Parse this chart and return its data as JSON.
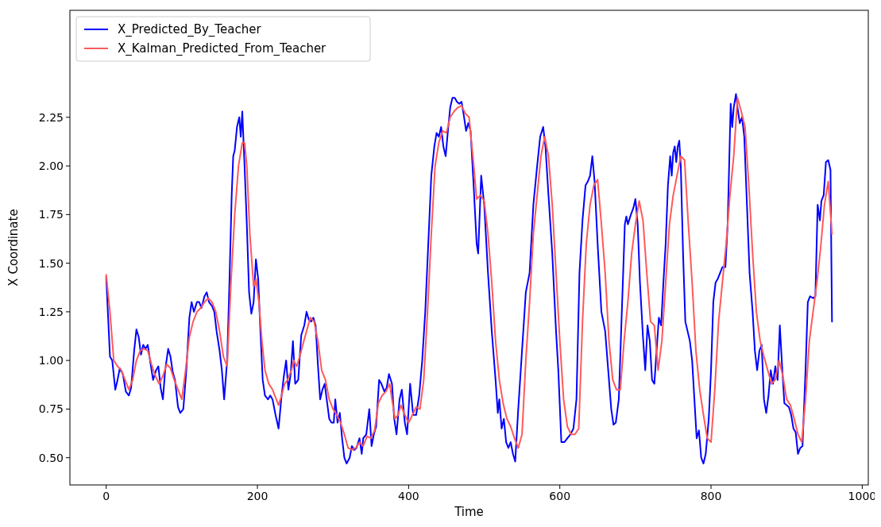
{
  "chart_data": {
    "type": "line",
    "xlabel": "Time",
    "ylabel": "X Coordinate",
    "xlim": [
      -48,
      1008
    ],
    "ylim": [
      0.36,
      2.8
    ],
    "xticks": [
      0,
      200,
      400,
      600,
      800,
      1000
    ],
    "yticks": [
      {
        "value": 0.5,
        "label": "0.50"
      },
      {
        "value": 0.75,
        "label": "0.75"
      },
      {
        "value": 1,
        "label": "1.00"
      },
      {
        "value": 1.25,
        "label": "1.25"
      },
      {
        "value": 1.5,
        "label": "1.50"
      },
      {
        "value": 1.75,
        "label": "1.75"
      },
      {
        "value": 2,
        "label": "2.00"
      },
      {
        "value": 2.25,
        "label": "2.25"
      }
    ],
    "grid": false,
    "legend": "top left",
    "marker": "none",
    "line_style": "solid",
    "series": [
      {
        "name": "X_Predicted_By_Teacher",
        "color": "#0000ff",
        "x": [
          0,
          5,
          8,
          12,
          15,
          18,
          22,
          26,
          30,
          33,
          37,
          40,
          43,
          46,
          49,
          52,
          55,
          58,
          62,
          66,
          69,
          72,
          75,
          78,
          82,
          85,
          88,
          91,
          95,
          98,
          102,
          106,
          110,
          113,
          116,
          120,
          123,
          126,
          130,
          133,
          136,
          140,
          143,
          146,
          150,
          153,
          156,
          160,
          163,
          166,
          168,
          170,
          173,
          176,
          178,
          180,
          183,
          186,
          189,
          192,
          195,
          198,
          201,
          204,
          207,
          210,
          214,
          217,
          220,
          224,
          228,
          232,
          235,
          238,
          241,
          244,
          247,
          250,
          254,
          258,
          262,
          265,
          268,
          271,
          274,
          277,
          280,
          283,
          286,
          289,
          292,
          295,
          298,
          301,
          303,
          306,
          309,
          312,
          315,
          318,
          322,
          325,
          328,
          331,
          335,
          338,
          340,
          344,
          348,
          351,
          354,
          357,
          361,
          364,
          368,
          371,
          374,
          378,
          381,
          384,
          388,
          391,
          395,
          398,
          402,
          406,
          410,
          414,
          418,
          422,
          426,
          430,
          434,
          437,
          440,
          443,
          446,
          449,
          452,
          455,
          458,
          461,
          464,
          467,
          470,
          473,
          476,
          479,
          482,
          486,
          490,
          492,
          496,
          500,
          505,
          510,
          515,
          518,
          520,
          523,
          526,
          529,
          532,
          535,
          538,
          541,
          545,
          550,
          555,
          560,
          565,
          570,
          574,
          578,
          581,
          585,
          590,
          595,
          598,
          602,
          606,
          610,
          614,
          618,
          622,
          626,
          630,
          634,
          637,
          640,
          643,
          646,
          650,
          655,
          660,
          664,
          668,
          671,
          674,
          678,
          682,
          686,
          688,
          690,
          694,
          697,
          700,
          703,
          706,
          710,
          713,
          716,
          719,
          722,
          725,
          728,
          731,
          734,
          737,
          740,
          743,
          746,
          748,
          750,
          752,
          754,
          756,
          758,
          760,
          763,
          766,
          769,
          772,
          775,
          778,
          781,
          784,
          787,
          790,
          793,
          797,
          800,
          803,
          806,
          809,
          812,
          815,
          819,
          822,
          826,
          828,
          830,
          833,
          835,
          838,
          841,
          844,
          847,
          851,
          855,
          858,
          861,
          864,
          867,
          870,
          873,
          876,
          879,
          882,
          885,
          888,
          891,
          894,
          897,
          900,
          903,
          906,
          909,
          912,
          915,
          918,
          921,
          925,
          928,
          931,
          935,
          938,
          941,
          944,
          946,
          949,
          952,
          955,
          958,
          960
        ],
        "values": [
          1.43,
          1.02,
          1.0,
          0.85,
          0.9,
          0.96,
          0.93,
          0.84,
          0.82,
          0.86,
          1.05,
          1.16,
          1.12,
          1.03,
          1.08,
          1.06,
          1.08,
          1.0,
          0.9,
          0.95,
          0.97,
          0.86,
          0.8,
          0.95,
          1.06,
          1.02,
          0.94,
          0.9,
          0.76,
          0.73,
          0.75,
          0.95,
          1.22,
          1.3,
          1.25,
          1.3,
          1.3,
          1.27,
          1.33,
          1.35,
          1.3,
          1.28,
          1.25,
          1.15,
          1.05,
          0.95,
          0.8,
          1.0,
          1.4,
          1.85,
          2.05,
          2.08,
          2.2,
          2.25,
          2.15,
          2.28,
          2.0,
          1.7,
          1.35,
          1.24,
          1.3,
          1.52,
          1.42,
          1.15,
          0.9,
          0.82,
          0.8,
          0.82,
          0.8,
          0.72,
          0.65,
          0.82,
          0.92,
          1.0,
          0.85,
          0.93,
          1.1,
          0.88,
          0.9,
          1.13,
          1.18,
          1.25,
          1.21,
          1.2,
          1.22,
          1.18,
          0.98,
          0.8,
          0.85,
          0.88,
          0.79,
          0.7,
          0.68,
          0.68,
          0.8,
          0.68,
          0.73,
          0.6,
          0.5,
          0.47,
          0.5,
          0.56,
          0.54,
          0.55,
          0.6,
          0.52,
          0.6,
          0.62,
          0.75,
          0.56,
          0.62,
          0.66,
          0.9,
          0.88,
          0.84,
          0.86,
          0.93,
          0.88,
          0.7,
          0.62,
          0.8,
          0.85,
          0.68,
          0.62,
          0.88,
          0.72,
          0.72,
          0.82,
          1.0,
          1.25,
          1.6,
          1.95,
          2.1,
          2.17,
          2.15,
          2.2,
          2.1,
          2.05,
          2.18,
          2.3,
          2.35,
          2.35,
          2.33,
          2.32,
          2.33,
          2.26,
          2.18,
          2.22,
          2.18,
          1.9,
          1.6,
          1.55,
          1.95,
          1.8,
          1.45,
          1.15,
          0.9,
          0.73,
          0.8,
          0.65,
          0.7,
          0.58,
          0.55,
          0.58,
          0.52,
          0.48,
          0.75,
          1.05,
          1.35,
          1.45,
          1.8,
          2.0,
          2.15,
          2.2,
          2.1,
          1.85,
          1.55,
          1.15,
          0.95,
          0.58,
          0.58,
          0.6,
          0.62,
          0.65,
          0.8,
          1.45,
          1.72,
          1.9,
          1.92,
          1.95,
          2.05,
          1.92,
          1.6,
          1.25,
          1.15,
          0.95,
          0.75,
          0.67,
          0.68,
          0.8,
          1.25,
          1.7,
          1.74,
          1.7,
          1.75,
          1.78,
          1.83,
          1.7,
          1.4,
          1.12,
          0.95,
          1.18,
          1.1,
          0.9,
          0.88,
          1.05,
          1.22,
          1.18,
          1.4,
          1.6,
          1.9,
          2.05,
          1.95,
          2.07,
          2.1,
          2.02,
          2.1,
          2.13,
          2.0,
          1.55,
          1.2,
          1.15,
          1.1,
          1.0,
          0.8,
          0.6,
          0.64,
          0.5,
          0.47,
          0.52,
          0.7,
          0.95,
          1.3,
          1.4,
          1.42,
          1.45,
          1.48,
          1.48,
          1.7,
          2.32,
          2.2,
          2.3,
          2.37,
          2.3,
          2.22,
          2.25,
          2.15,
          1.85,
          1.45,
          1.25,
          1.05,
          0.95,
          1.05,
          1.08,
          0.8,
          0.73,
          0.82,
          0.95,
          0.88,
          0.97,
          0.9,
          1.18,
          0.97,
          0.78,
          0.77,
          0.76,
          0.72,
          0.65,
          0.63,
          0.52,
          0.55,
          0.56,
          0.95,
          1.3,
          1.33,
          1.32,
          1.33,
          1.8,
          1.72,
          1.82,
          1.85,
          2.02,
          2.03,
          1.98,
          1.2
        ]
      },
      {
        "name": "X_Kalman_Predicted_From_Teacher",
        "color": "#ff5a5a",
        "x": [
          0,
          5,
          10,
          15,
          20,
          25,
          30,
          35,
          40,
          45,
          50,
          55,
          60,
          65,
          70,
          75,
          80,
          85,
          90,
          95,
          100,
          105,
          110,
          115,
          120,
          125,
          130,
          135,
          140,
          145,
          150,
          155,
          160,
          165,
          170,
          175,
          180,
          183,
          186,
          190,
          195,
          198,
          202,
          206,
          210,
          215,
          220,
          225,
          228,
          232,
          236,
          240,
          245,
          248,
          252,
          256,
          260,
          265,
          270,
          275,
          280,
          285,
          290,
          295,
          300,
          305,
          310,
          315,
          320,
          325,
          330,
          335,
          340,
          345,
          350,
          355,
          360,
          365,
          370,
          375,
          378,
          382,
          386,
          390,
          395,
          400,
          405,
          410,
          415,
          420,
          425,
          430,
          435,
          440,
          445,
          450,
          455,
          460,
          465,
          470,
          475,
          480,
          485,
          490,
          495,
          500,
          505,
          510,
          515,
          520,
          525,
          530,
          535,
          540,
          545,
          550,
          555,
          560,
          565,
          570,
          575,
          580,
          585,
          590,
          595,
          600,
          605,
          610,
          615,
          620,
          625,
          630,
          635,
          640,
          645,
          650,
          655,
          660,
          665,
          670,
          675,
          680,
          685,
          690,
          695,
          700,
          705,
          710,
          715,
          720,
          725,
          730,
          735,
          740,
          745,
          750,
          755,
          760,
          765,
          770,
          775,
          780,
          785,
          790,
          795,
          800,
          805,
          810,
          815,
          820,
          825,
          830,
          835,
          840,
          845,
          850,
          855,
          860,
          865,
          870,
          875,
          880,
          885,
          890,
          895,
          900,
          905,
          910,
          915,
          920,
          925,
          930,
          935,
          940,
          945,
          950,
          955,
          960
        ],
        "values": [
          1.44,
          1.25,
          1.0,
          0.97,
          0.95,
          0.9,
          0.85,
          0.9,
          1.0,
          1.05,
          1.06,
          1.05,
          0.98,
          0.92,
          0.88,
          0.92,
          0.98,
          0.96,
          0.9,
          0.85,
          0.8,
          0.95,
          1.12,
          1.2,
          1.25,
          1.27,
          1.3,
          1.32,
          1.3,
          1.25,
          1.15,
          1.02,
          0.97,
          1.4,
          1.75,
          2.0,
          2.12,
          2.12,
          2.0,
          1.65,
          1.38,
          1.42,
          1.3,
          1.1,
          0.95,
          0.88,
          0.85,
          0.8,
          0.77,
          0.82,
          0.88,
          0.9,
          0.95,
          1.0,
          0.97,
          1.02,
          1.08,
          1.15,
          1.22,
          1.2,
          1.1,
          0.95,
          0.9,
          0.8,
          0.75,
          0.72,
          0.68,
          0.62,
          0.55,
          0.54,
          0.55,
          0.58,
          0.56,
          0.61,
          0.6,
          0.64,
          0.78,
          0.82,
          0.84,
          0.88,
          0.8,
          0.7,
          0.72,
          0.77,
          0.72,
          0.68,
          0.72,
          0.76,
          0.75,
          0.9,
          1.25,
          1.65,
          2.0,
          2.12,
          2.18,
          2.17,
          2.25,
          2.28,
          2.3,
          2.31,
          2.27,
          2.25,
          2.05,
          1.83,
          1.85,
          1.82,
          1.65,
          1.4,
          1.1,
          0.9,
          0.78,
          0.7,
          0.66,
          0.6,
          0.55,
          0.62,
          1.0,
          1.3,
          1.65,
          1.85,
          2.05,
          2.15,
          2.05,
          1.8,
          1.45,
          1.1,
          0.8,
          0.66,
          0.62,
          0.62,
          0.65,
          1.2,
          1.6,
          1.8,
          1.9,
          1.93,
          1.7,
          1.45,
          1.1,
          0.9,
          0.85,
          0.85,
          1.1,
          1.3,
          1.55,
          1.7,
          1.82,
          1.72,
          1.45,
          1.2,
          1.18,
          0.95,
          1.1,
          1.4,
          1.7,
          1.85,
          1.95,
          2.05,
          2.03,
          1.7,
          1.4,
          1.05,
          0.85,
          0.72,
          0.6,
          0.58,
          0.85,
          1.2,
          1.4,
          1.6,
          1.85,
          2.05,
          2.35,
          2.28,
          2.2,
          1.9,
          1.55,
          1.25,
          1.1,
          1.02,
          0.95,
          0.88,
          0.9,
          1.0,
          0.92,
          0.8,
          0.77,
          0.7,
          0.62,
          0.58,
          0.8,
          1.1,
          1.25,
          1.4,
          1.58,
          1.8,
          1.92,
          1.65
        ]
      }
    ]
  }
}
